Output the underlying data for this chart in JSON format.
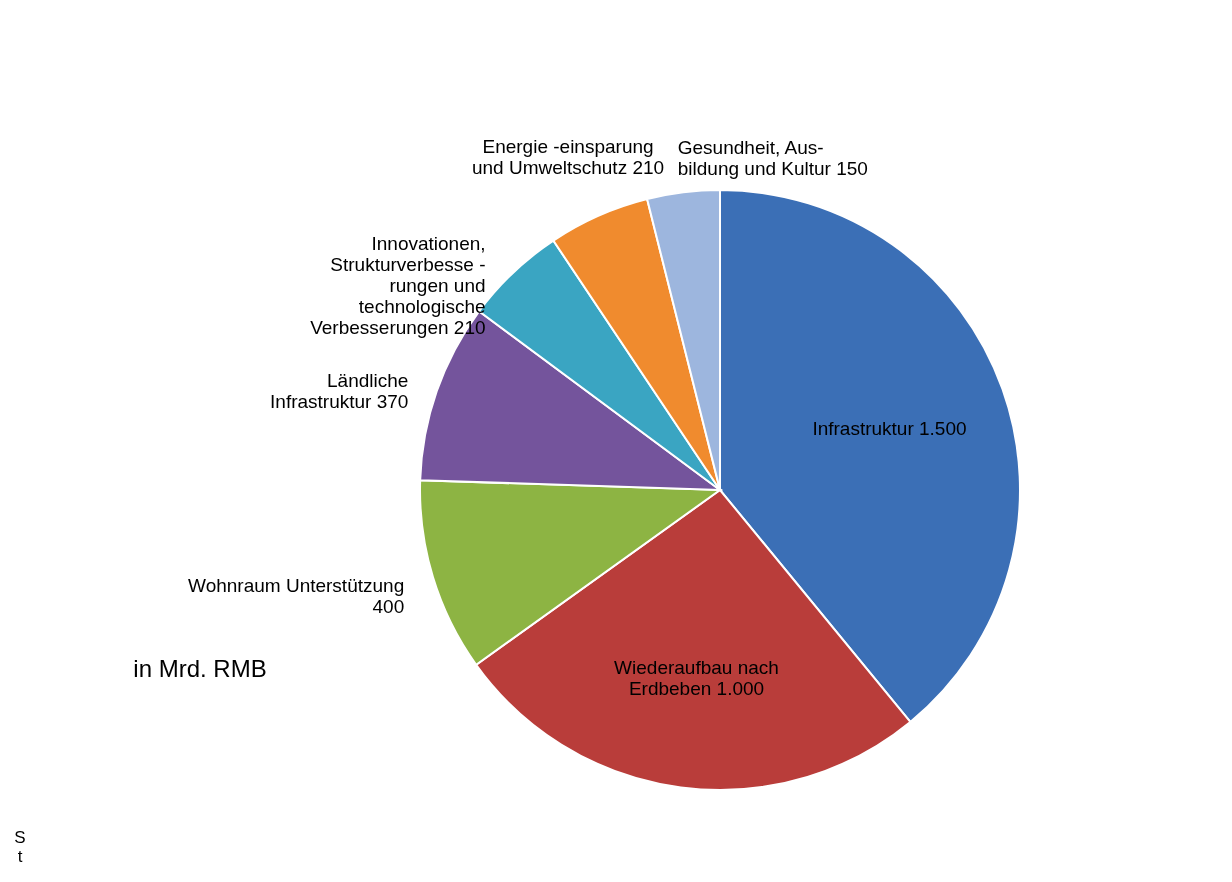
{
  "chart_data": {
    "type": "pie",
    "categories": [
      "Infrastruktur",
      "Wiederaufbau nach Erdbeben",
      "Wohnraum Unterstützung",
      "Ländliche Infrastruktur",
      "Innovationen, Strukturverbesse - rungen und technologische Verbesserungen",
      "Energie -einsparung und Umweltschutz",
      "Gesundheit, Aus- bildung und Kultur"
    ],
    "values": [
      1500,
      1000,
      400,
      370,
      210,
      210,
      150
    ],
    "value_labels": [
      "1.500",
      "1.000",
      "400",
      "370",
      "210",
      "210",
      "150"
    ],
    "colors": [
      "#3b6fb6",
      "#b93d3a",
      "#8db443",
      "#74549c",
      "#3aa5c2",
      "#f08b2e",
      "#9db6de"
    ],
    "annotations": [
      "in Mrd. RMB",
      "St"
    ]
  }
}
